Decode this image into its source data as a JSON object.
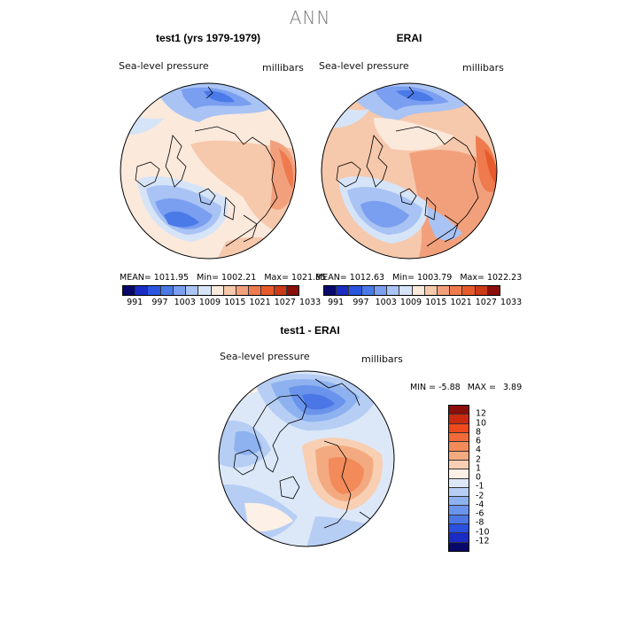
{
  "figure": {
    "title": "ANN",
    "panels": [
      {
        "id": "model",
        "title": "test1 (yrs 1979-1979)",
        "variable": "Sea-level pressure",
        "units": "millibars",
        "stats": {
          "mean_label": "MEAN=",
          "mean": "1011.95",
          "min_label": "Min=",
          "min": "1002.21",
          "max_label": "Max=",
          "max": "1021.85"
        }
      },
      {
        "id": "obs",
        "title": "ERAI",
        "variable": "Sea-level pressure",
        "units": "millibars",
        "stats": {
          "mean_label": "MEAN=",
          "mean": "1012.63",
          "min_label": "Min=",
          "min": "1003.79",
          "max_label": "Max=",
          "max": "1022.23"
        }
      },
      {
        "id": "diff",
        "title": "test1 - ERAI",
        "variable": "Sea-level pressure",
        "units": "millibars",
        "stats": {
          "min_label": "MIN =",
          "min": "-5.88",
          "max_label": "MAX =",
          "max": "3.89"
        }
      }
    ],
    "abs_colorbar": {
      "colors": [
        "#08086b",
        "#1a2cc4",
        "#2a55e0",
        "#4a7ae8",
        "#7a9ef0",
        "#a9c3f4",
        "#d6e4f8",
        "#fbe9dc",
        "#f6c8ac",
        "#f2a07c",
        "#ee7a4e",
        "#e65a2c",
        "#cc3a18",
        "#8a0e0a"
      ],
      "ticks": [
        "991",
        "997",
        "1003",
        "1009",
        "1015",
        "1021",
        "1027",
        "1033"
      ]
    },
    "diff_colorbar": {
      "colors": [
        "#8a0e0a",
        "#cc2a10",
        "#ee4a1c",
        "#f26a3a",
        "#f28a5a",
        "#f4aa80",
        "#f8cfb2",
        "#fdf0e6",
        "#dce8f8",
        "#b6cef4",
        "#8eb2f0",
        "#6a94ec",
        "#4a76e6",
        "#2a50e0",
        "#1a2cc4",
        "#08086b"
      ],
      "ticks": [
        "12",
        "10",
        "8",
        "6",
        "4",
        "2",
        "1",
        "0",
        "-1",
        "-2",
        "-4",
        "-6",
        "-8",
        "-10",
        "-12"
      ]
    }
  }
}
